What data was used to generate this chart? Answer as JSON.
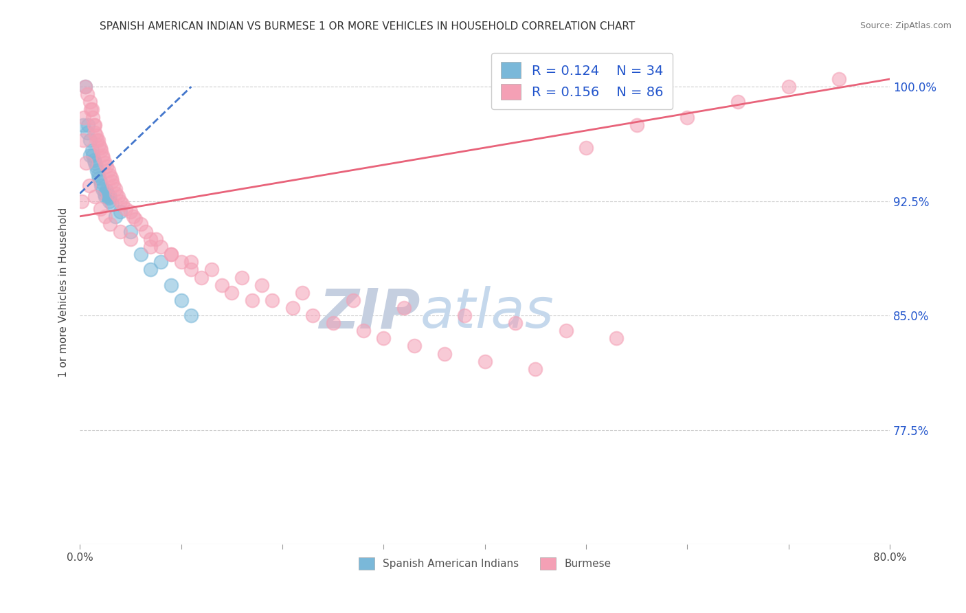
{
  "title": "SPANISH AMERICAN INDIAN VS BURMESE 1 OR MORE VEHICLES IN HOUSEHOLD CORRELATION CHART",
  "source": "Source: ZipAtlas.com",
  "ylabel": "1 or more Vehicles in Household",
  "xlim": [
    0.0,
    80.0
  ],
  "ylim": [
    70.0,
    103.0
  ],
  "yticks": [
    77.5,
    85.0,
    92.5,
    100.0
  ],
  "xticks": [
    0.0,
    10.0,
    20.0,
    30.0,
    40.0,
    50.0,
    60.0,
    70.0,
    80.0
  ],
  "xtick_labels": [
    "0.0%",
    "",
    "",
    "",
    "",
    "",
    "",
    "",
    "80.0%"
  ],
  "ytick_labels": [
    "77.5%",
    "85.0%",
    "92.5%",
    "100.0%"
  ],
  "legend1_label": "Spanish American Indians",
  "legend2_label": "Burmese",
  "r1": 0.124,
  "n1": 34,
  "r2": 0.156,
  "n2": 86,
  "color1": "#7ab8d9",
  "color2": "#f4a0b5",
  "trend_color1": "#4477cc",
  "trend_color2": "#e8637a",
  "watermark": "ZIPatlas",
  "watermark_color": "#dde8f5",
  "background_color": "#ffffff",
  "title_fontsize": 11,
  "scatter1_x": [
    0.3,
    0.5,
    0.7,
    0.8,
    1.0,
    1.0,
    1.2,
    1.3,
    1.4,
    1.5,
    1.6,
    1.7,
    1.8,
    1.9,
    2.0,
    2.1,
    2.2,
    2.4,
    2.5,
    2.6,
    2.7,
    2.8,
    2.9,
    3.0,
    3.2,
    3.5,
    4.0,
    5.0,
    6.0,
    7.0,
    8.0,
    9.0,
    10.0,
    11.0
  ],
  "scatter1_y": [
    97.5,
    100.0,
    97.0,
    97.5,
    96.5,
    95.5,
    95.8,
    95.5,
    95.2,
    95.0,
    94.8,
    94.5,
    94.2,
    94.0,
    93.8,
    93.5,
    93.3,
    93.0,
    92.8,
    93.2,
    93.0,
    92.7,
    92.5,
    92.8,
    92.3,
    91.5,
    91.8,
    90.5,
    89.0,
    88.0,
    88.5,
    87.0,
    86.0,
    85.0
  ],
  "scatter2_x": [
    0.2,
    0.4,
    0.5,
    0.7,
    1.0,
    1.1,
    1.2,
    1.3,
    1.4,
    1.5,
    1.5,
    1.6,
    1.7,
    1.8,
    1.9,
    2.0,
    2.1,
    2.2,
    2.3,
    2.5,
    2.6,
    2.8,
    3.0,
    3.1,
    3.2,
    3.3,
    3.5,
    3.6,
    3.8,
    4.0,
    4.2,
    4.5,
    5.0,
    5.3,
    5.5,
    6.0,
    6.5,
    7.0,
    7.5,
    8.0,
    9.0,
    10.0,
    11.0,
    12.0,
    14.0,
    15.0,
    17.0,
    19.0,
    21.0,
    23.0,
    25.0,
    28.0,
    30.0,
    33.0,
    36.0,
    40.0,
    45.0,
    50.0,
    55.0,
    60.0,
    65.0,
    70.0,
    75.0,
    0.3,
    0.6,
    0.9,
    1.5,
    2.0,
    2.5,
    3.0,
    4.0,
    5.0,
    7.0,
    9.0,
    11.0,
    13.0,
    16.0,
    18.0,
    22.0,
    27.0,
    32.0,
    38.0,
    43.0,
    48.0,
    53.0
  ],
  "scatter2_y": [
    92.5,
    98.0,
    100.0,
    99.5,
    99.0,
    98.5,
    98.5,
    98.0,
    97.5,
    97.5,
    97.0,
    96.8,
    96.5,
    96.5,
    96.2,
    96.0,
    95.8,
    95.5,
    95.3,
    95.0,
    94.8,
    94.5,
    94.2,
    94.0,
    93.8,
    93.5,
    93.3,
    93.0,
    92.8,
    92.5,
    92.3,
    92.0,
    91.8,
    91.5,
    91.3,
    91.0,
    90.5,
    90.0,
    90.0,
    89.5,
    89.0,
    88.5,
    88.0,
    87.5,
    87.0,
    86.5,
    86.0,
    86.0,
    85.5,
    85.0,
    84.5,
    84.0,
    83.5,
    83.0,
    82.5,
    82.0,
    81.5,
    96.0,
    97.5,
    98.0,
    99.0,
    100.0,
    100.5,
    96.5,
    95.0,
    93.5,
    92.8,
    92.0,
    91.5,
    91.0,
    90.5,
    90.0,
    89.5,
    89.0,
    88.5,
    88.0,
    87.5,
    87.0,
    86.5,
    86.0,
    85.5,
    85.0,
    84.5,
    84.0,
    83.5
  ],
  "trend1_x0": 0.0,
  "trend1_x1": 11.0,
  "trend1_y0": 93.0,
  "trend1_y1": 100.0,
  "trend2_x0": 0.0,
  "trend2_x1": 80.0,
  "trend2_y0": 91.5,
  "trend2_y1": 100.5
}
